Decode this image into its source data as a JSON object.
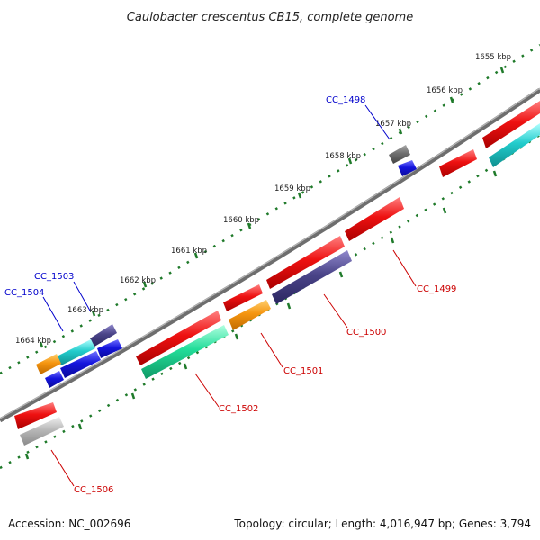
{
  "title": "Caulobacter crescentus CB15, complete genome",
  "footer": {
    "accession": "Accession: NC_002696",
    "topology": "Topology: circular; Length: 4,016,947 bp; Genes: 3,794"
  },
  "scale_labels": [
    "1655 kbp",
    "1656 kbp",
    "1657 kbp",
    "1658 kbp",
    "1659 kbp",
    "1660 kbp",
    "1661 kbp",
    "1662 kbp",
    "1663 kbp",
    "1664 kbp"
  ],
  "gene_labels": {
    "cc1498": "CC_1498",
    "cc1499": "CC_1499",
    "cc1500": "CC_1500",
    "cc1501": "CC_1501",
    "cc1502": "CC_1502",
    "cc1503": "CC_1503",
    "cc1504": "CC_1504",
    "cc1506": "CC_1506"
  },
  "colors": {
    "backbone": "#7a7a7a",
    "ticks": "#1f7a2a",
    "label_blue": "#0000cc",
    "label_red": "#cc0000",
    "gene_red": "#ee1111",
    "gene_blue": "#1515dd",
    "gene_navy": "#4a4488",
    "gene_orange": "#f5950f",
    "gene_cyan": "#22cccc",
    "gene_green": "#22dd99",
    "gene_grey": "#b8b8b8",
    "gene_darkgrey": "#6f6f6f"
  }
}
